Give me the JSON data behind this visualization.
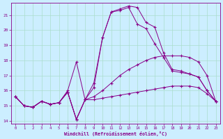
{
  "bg_color": "#cceeff",
  "line_color": "#880088",
  "grid_color": "#aadddd",
  "xlabel": "Windchill (Refroidissement éolien,°C)",
  "xlim_min": -0.5,
  "xlim_max": 23.5,
  "ylim_min": 13.8,
  "ylim_max": 21.8,
  "xticks": [
    0,
    1,
    2,
    3,
    4,
    5,
    6,
    7,
    8,
    9,
    10,
    11,
    12,
    13,
    14,
    15,
    16,
    17,
    18,
    19,
    20,
    21,
    22,
    23
  ],
  "yticks": [
    14,
    15,
    16,
    17,
    18,
    19,
    20,
    21
  ],
  "series": [
    [
      15.6,
      15.0,
      14.9,
      15.3,
      15.1,
      15.2,
      15.9,
      14.1,
      15.4,
      15.4,
      15.5,
      15.6,
      15.7,
      15.8,
      15.9,
      16.0,
      16.1,
      16.2,
      16.3,
      16.3,
      16.3,
      16.2,
      15.8,
      15.3
    ],
    [
      15.6,
      15.0,
      14.9,
      15.3,
      15.1,
      15.2,
      15.9,
      14.1,
      15.4,
      15.6,
      16.0,
      16.5,
      17.0,
      17.4,
      17.7,
      18.0,
      18.2,
      18.3,
      18.3,
      18.3,
      18.2,
      17.9,
      17.0,
      15.3
    ],
    [
      15.6,
      15.0,
      14.9,
      15.3,
      15.1,
      15.2,
      16.0,
      17.9,
      15.4,
      16.2,
      19.5,
      21.2,
      21.3,
      21.5,
      20.4,
      20.1,
      19.1,
      18.2,
      17.3,
      17.2,
      17.1,
      16.9,
      16.0,
      15.3
    ],
    [
      15.6,
      15.0,
      14.9,
      15.3,
      15.1,
      15.2,
      15.9,
      14.1,
      15.4,
      16.5,
      19.5,
      21.2,
      21.4,
      21.6,
      21.5,
      20.5,
      20.2,
      18.5,
      17.4,
      17.3,
      17.1,
      16.9,
      16.0,
      15.3
    ]
  ]
}
